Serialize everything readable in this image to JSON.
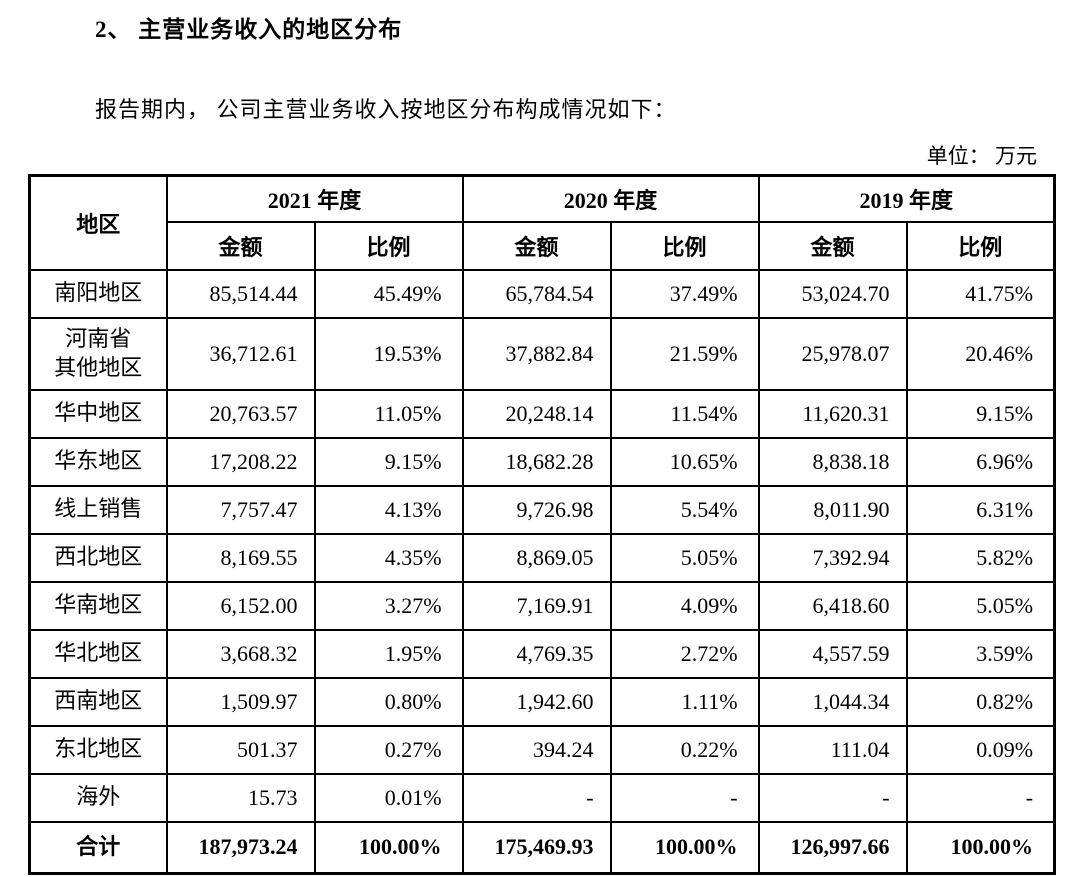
{
  "document": {
    "section_title": "2、 主营业务收入的地区分布",
    "intro_paragraph": "报告期内， 公司主营业务收入按地区分布构成情况如下：",
    "unit_note": "单位： 万元"
  },
  "table": {
    "corner_header": "地区",
    "year_headers": [
      "2021 年度",
      "2020 年度",
      "2019 年度"
    ],
    "amount_header": "金额",
    "ratio_header": "比例",
    "rows": [
      {
        "region": "南阳地区",
        "cells": [
          "85,514.44",
          "45.49%",
          "65,784.54",
          "37.49%",
          "53,024.70",
          "41.75%"
        ]
      },
      {
        "region": "河南省\n其他地区",
        "cells": [
          "36,712.61",
          "19.53%",
          "37,882.84",
          "21.59%",
          "25,978.07",
          "20.46%"
        ]
      },
      {
        "region": "华中地区",
        "cells": [
          "20,763.57",
          "11.05%",
          "20,248.14",
          "11.54%",
          "11,620.31",
          "9.15%"
        ]
      },
      {
        "region": "华东地区",
        "cells": [
          "17,208.22",
          "9.15%",
          "18,682.28",
          "10.65%",
          "8,838.18",
          "6.96%"
        ]
      },
      {
        "region": "线上销售",
        "cells": [
          "7,757.47",
          "4.13%",
          "9,726.98",
          "5.54%",
          "8,011.90",
          "6.31%"
        ]
      },
      {
        "region": "西北地区",
        "cells": [
          "8,169.55",
          "4.35%",
          "8,869.05",
          "5.05%",
          "7,392.94",
          "5.82%"
        ]
      },
      {
        "region": "华南地区",
        "cells": [
          "6,152.00",
          "3.27%",
          "7,169.91",
          "4.09%",
          "6,418.60",
          "5.05%"
        ]
      },
      {
        "region": "华北地区",
        "cells": [
          "3,668.32",
          "1.95%",
          "4,769.35",
          "2.72%",
          "4,557.59",
          "3.59%"
        ]
      },
      {
        "region": "西南地区",
        "cells": [
          "1,509.97",
          "0.80%",
          "1,942.60",
          "1.11%",
          "1,044.34",
          "0.82%"
        ]
      },
      {
        "region": "东北地区",
        "cells": [
          "501.37",
          "0.27%",
          "394.24",
          "0.22%",
          "111.04",
          "0.09%"
        ]
      },
      {
        "region": "海外",
        "cells": [
          "15.73",
          "0.01%",
          "-",
          "-",
          "-",
          "-"
        ]
      }
    ],
    "total_row": {
      "region": "合计",
      "cells": [
        "187,973.24",
        "100.00%",
        "175,469.93",
        "100.00%",
        "126,997.66",
        "100.00%"
      ]
    }
  }
}
